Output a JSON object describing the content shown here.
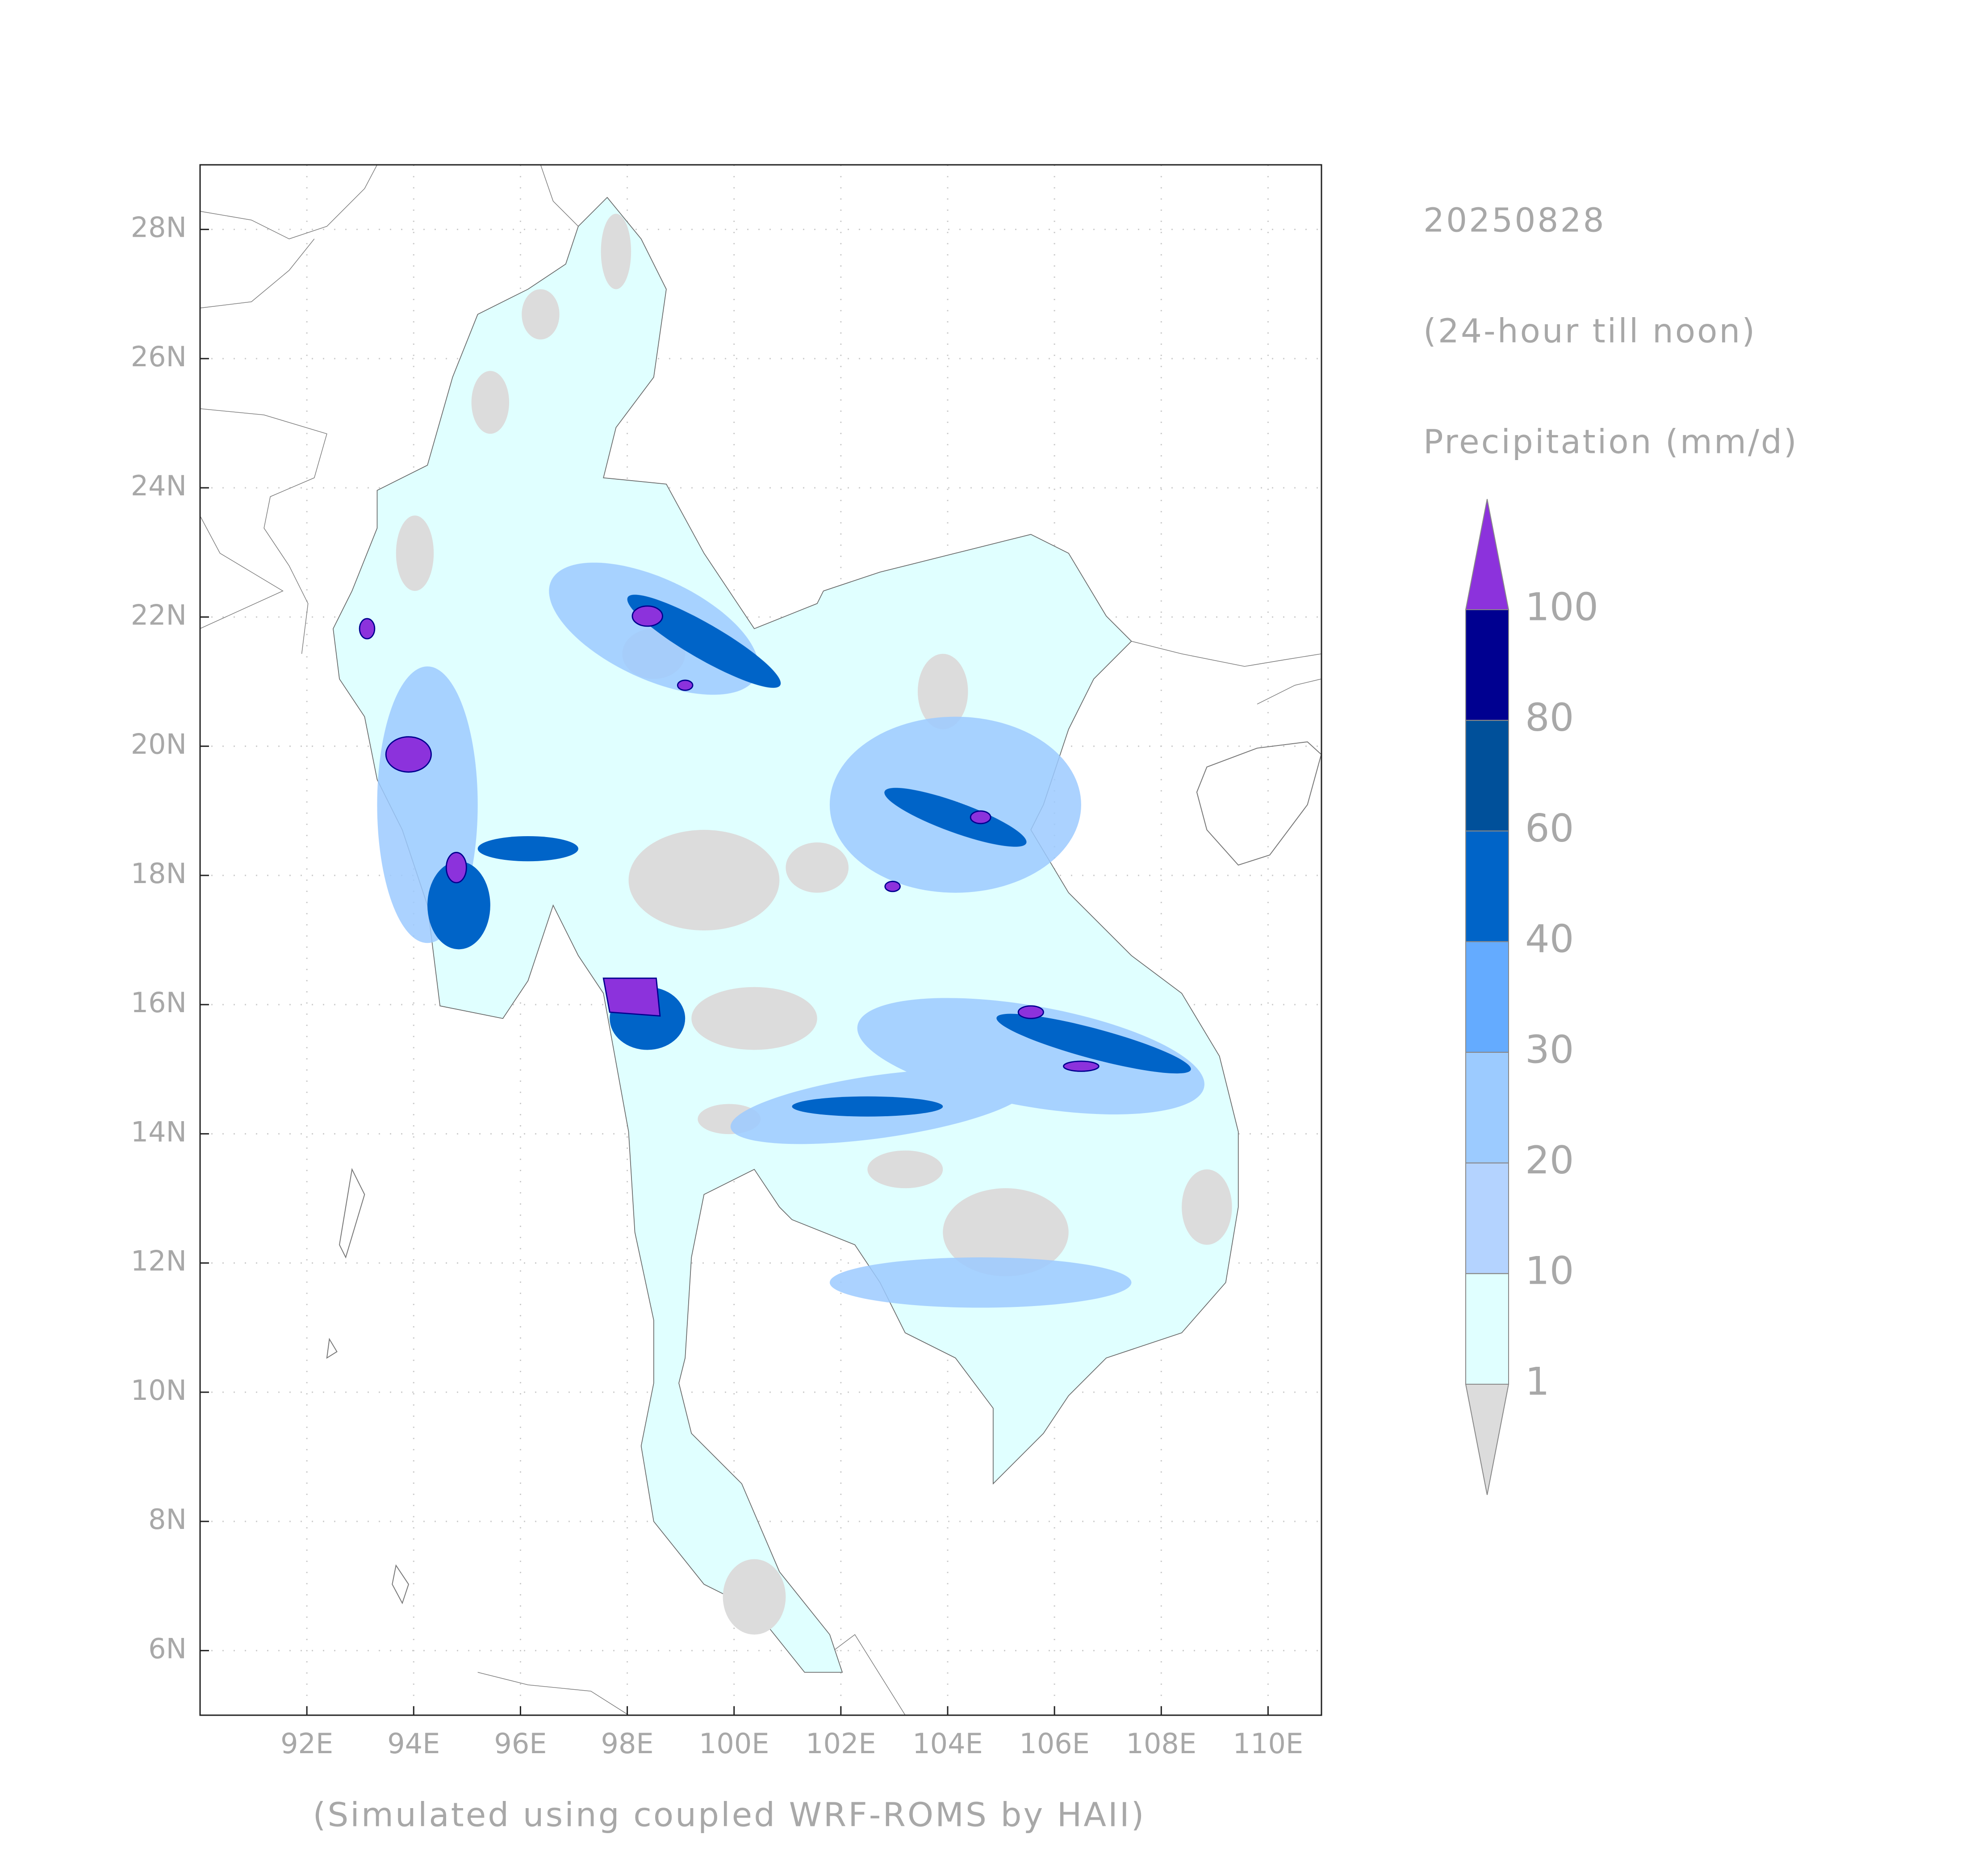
{
  "map": {
    "date": "20250828",
    "period": "(24-hour till noon)",
    "variable": "Precipitation (mm/d)",
    "footer": "(Simulated using coupled WRF-ROMS by HAII)",
    "xlim": [
      90,
      111
    ],
    "ylim": [
      5,
      29
    ],
    "xticks": [
      {
        "value": 92,
        "label": "92E"
      },
      {
        "value": 94,
        "label": "94E"
      },
      {
        "value": 96,
        "label": "96E"
      },
      {
        "value": 98,
        "label": "98E"
      },
      {
        "value": 100,
        "label": "100E"
      },
      {
        "value": 102,
        "label": "102E"
      },
      {
        "value": 104,
        "label": "104E"
      },
      {
        "value": 106,
        "label": "106E"
      },
      {
        "value": 108,
        "label": "108E"
      },
      {
        "value": 110,
        "label": "110E"
      }
    ],
    "yticks": [
      {
        "value": 6,
        "label": "6N"
      },
      {
        "value": 8,
        "label": "8N"
      },
      {
        "value": 10,
        "label": "10N"
      },
      {
        "value": 12,
        "label": "12N"
      },
      {
        "value": 14,
        "label": "14N"
      },
      {
        "value": 16,
        "label": "16N"
      },
      {
        "value": 18,
        "label": "18N"
      },
      {
        "value": 20,
        "label": "20N"
      },
      {
        "value": 22,
        "label": "22N"
      },
      {
        "value": 24,
        "label": "24N"
      },
      {
        "value": 26,
        "label": "26N"
      },
      {
        "value": 28,
        "label": "28N"
      }
    ],
    "grid": true
  },
  "legend": {
    "levels": [
      1,
      10,
      20,
      30,
      40,
      60,
      80,
      100
    ],
    "colors": [
      "#e0ffff",
      "#b4d3ff",
      "#9ccbff",
      "#64abff",
      "#0064c8",
      "#00509a",
      "#000090"
    ],
    "under_color": "#dcdcdc",
    "over_color": "#8c32dc"
  }
}
